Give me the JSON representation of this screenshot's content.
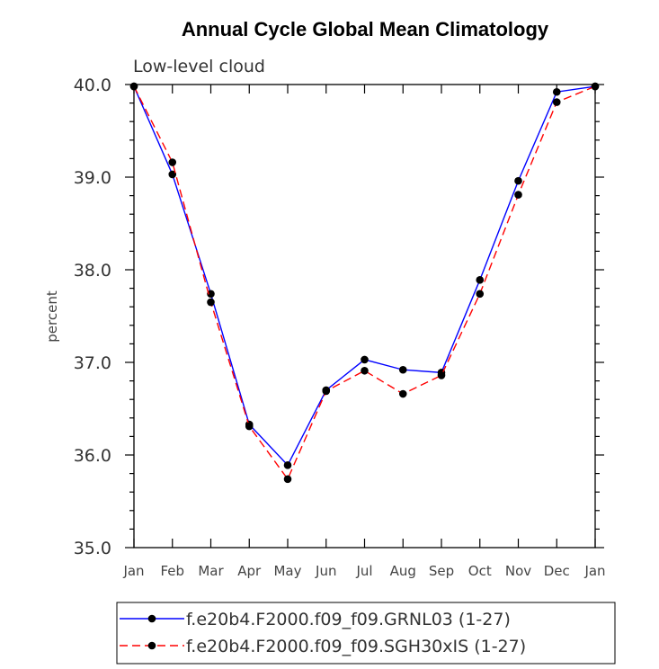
{
  "chart_data": {
    "type": "line",
    "title": "Annual Cycle Global Mean Climatology",
    "subtitle": "Low-level cloud",
    "xlabel": "",
    "ylabel": "percent",
    "categories": [
      "Jan",
      "Feb",
      "Mar",
      "Apr",
      "May",
      "Jun",
      "Jul",
      "Aug",
      "Sep",
      "Oct",
      "Nov",
      "Dec",
      "Jan"
    ],
    "ylim": [
      35.0,
      40.0
    ],
    "yticks": [
      "35.0",
      "36.0",
      "37.0",
      "38.0",
      "39.0",
      "40.0"
    ],
    "grid": false,
    "legend_position": "bottom",
    "series": [
      {
        "name": "f.e20b4.F2000.f09_f09.GRNL03 (1-27)",
        "color": "#0000ff",
        "dash": "solid",
        "values": [
          39.98,
          39.03,
          37.74,
          36.33,
          35.89,
          36.7,
          37.03,
          36.92,
          36.89,
          37.89,
          38.96,
          39.92,
          39.98
        ]
      },
      {
        "name": "f.e20b4.F2000.f09_f09.SGH30xIS (1-27)",
        "color": "#ff0000",
        "dash": "dashed",
        "values": [
          39.98,
          39.16,
          37.65,
          36.31,
          35.74,
          36.69,
          36.91,
          36.66,
          36.86,
          37.74,
          38.81,
          39.81,
          39.98
        ]
      }
    ]
  }
}
